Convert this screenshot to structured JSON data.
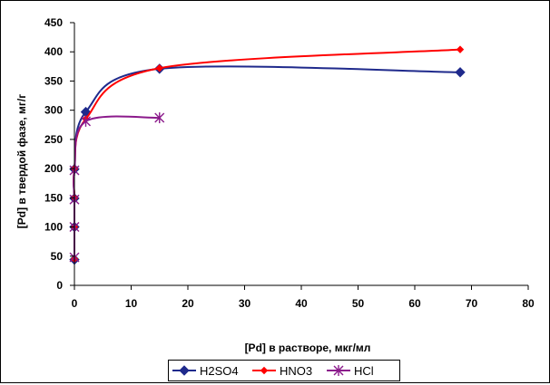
{
  "chart_data": {
    "type": "line",
    "title": "",
    "xlabel": "[Pd] в растворе, мкг/мл",
    "ylabel": "[Pd] в твердой фазе, мг/г",
    "xlim": [
      0,
      80
    ],
    "ylim": [
      0,
      450
    ],
    "xticks": [
      0,
      10,
      20,
      30,
      40,
      50,
      60,
      70,
      80
    ],
    "yticks": [
      0,
      50,
      100,
      150,
      200,
      250,
      300,
      350,
      400,
      450
    ],
    "grid": false,
    "legend_position": "bottom",
    "series": [
      {
        "name": "H2SO4",
        "color": "#1f2a8c",
        "marker": "diamond",
        "x": [
          0,
          0,
          0,
          0,
          2,
          15,
          68
        ],
        "y": [
          44,
          100,
          149,
          199,
          297,
          371,
          365
        ]
      },
      {
        "name": "HNO3",
        "color": "#ff0000",
        "marker": "small-diamond",
        "x": [
          0,
          0,
          0,
          0,
          2,
          15,
          68
        ],
        "y": [
          45,
          100,
          150,
          200,
          285,
          372,
          404
        ]
      },
      {
        "name": "HCl",
        "color": "#8b1a8b",
        "marker": "asterisk",
        "x": [
          0,
          0,
          0,
          0,
          2,
          15
        ],
        "y": [
          48,
          100,
          147,
          197,
          281,
          287
        ]
      }
    ]
  }
}
